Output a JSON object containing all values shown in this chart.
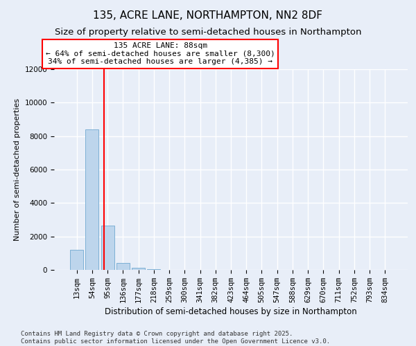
{
  "title1": "135, ACRE LANE, NORTHAMPTON, NN2 8DF",
  "title2": "Size of property relative to semi-detached houses in Northampton",
  "xlabel": "Distribution of semi-detached houses by size in Northampton",
  "ylabel": "Number of semi-detached properties",
  "bar_labels": [
    "13sqm",
    "54sqm",
    "95sqm",
    "136sqm",
    "177sqm",
    "218sqm",
    "259sqm",
    "300sqm",
    "341sqm",
    "382sqm",
    "423sqm",
    "464sqm",
    "505sqm",
    "547sqm",
    "588sqm",
    "629sqm",
    "670sqm",
    "711sqm",
    "752sqm",
    "793sqm",
    "834sqm"
  ],
  "bar_values": [
    1200,
    8400,
    2650,
    400,
    130,
    50,
    0,
    0,
    0,
    0,
    0,
    0,
    0,
    0,
    0,
    0,
    0,
    0,
    0,
    0,
    0
  ],
  "bar_color": "#bdd5ec",
  "bar_edgecolor": "#6fa8d0",
  "vline_x": 1.78,
  "vline_color": "red",
  "annotation_text": "135 ACRE LANE: 88sqm\n← 64% of semi-detached houses are smaller (8,300)\n34% of semi-detached houses are larger (4,385) →",
  "annotation_box_color": "white",
  "annotation_edge_color": "red",
  "ylim": [
    0,
    12000
  ],
  "yticks": [
    0,
    2000,
    4000,
    6000,
    8000,
    10000,
    12000
  ],
  "background_color": "#e8eef8",
  "grid_color": "white",
  "footer": "Contains HM Land Registry data © Crown copyright and database right 2025.\nContains public sector information licensed under the Open Government Licence v3.0.",
  "title1_fontsize": 11,
  "title2_fontsize": 9.5,
  "ylabel_fontsize": 8,
  "xlabel_fontsize": 8.5,
  "tick_fontsize": 7.5,
  "annot_fontsize": 8,
  "footer_fontsize": 6.5
}
